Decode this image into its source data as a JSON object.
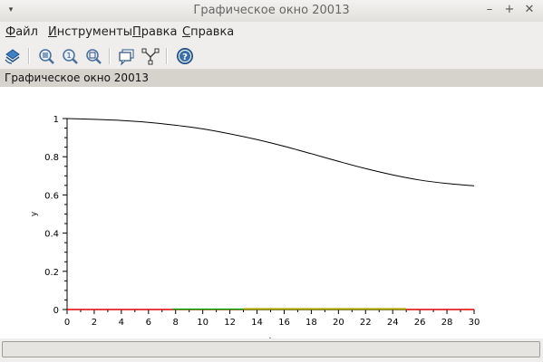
{
  "window": {
    "title": "Графическое окно 20013",
    "menu_icon": "▾",
    "minimize_glyph": "–",
    "maximize_glyph": "+",
    "close_glyph": "✕"
  },
  "menubar": {
    "items": [
      {
        "label": "Файл"
      },
      {
        "label": "Инструменты"
      },
      {
        "label": "Правка"
      },
      {
        "label": "Справка"
      }
    ]
  },
  "toolbar": {
    "buttons": [
      {
        "icon": "rotate-icon"
      },
      {
        "icon": "zoom-grid-icon"
      },
      {
        "icon": "zoom-1-icon"
      },
      {
        "icon": "zoom-area-icon"
      },
      {
        "icon": "datatip-icon"
      },
      {
        "icon": "datatip-editor-icon"
      },
      {
        "icon": "help-icon"
      }
    ]
  },
  "figure_label": "Графическое окно 20013",
  "chart_data": {
    "type": "line",
    "title": "",
    "xlabel": "t",
    "ylabel": "y",
    "xlim": [
      0,
      30
    ],
    "ylim": [
      0,
      1
    ],
    "xticks": [
      "0",
      "2",
      "4",
      "6",
      "8",
      "10",
      "12",
      "14",
      "16",
      "18",
      "20",
      "22",
      "24",
      "26",
      "28",
      "30"
    ],
    "yticks": [
      "0",
      "0.2",
      "0.4",
      "0.6",
      "0.8",
      "1"
    ],
    "series": [
      {
        "color": "#000000",
        "x": [
          0,
          2,
          4,
          6,
          8,
          10,
          12,
          14,
          16,
          18,
          20,
          22,
          24,
          26,
          28,
          30
        ],
        "y": [
          1.0,
          0.996,
          0.99,
          0.98,
          0.965,
          0.946,
          0.92,
          0.89,
          0.855,
          0.816,
          0.776,
          0.738,
          0.705,
          0.678,
          0.66,
          0.648
        ]
      },
      {
        "color": "#dd0000",
        "x": [
          0,
          30
        ],
        "y": [
          0.0,
          0.0
        ]
      },
      {
        "color": "#00aa00",
        "x": [
          7.8,
          25
        ],
        "y": [
          0.002,
          0.002
        ]
      },
      {
        "color": "#bbaa00",
        "x": [
          13,
          25
        ],
        "y": [
          0.004,
          0.004
        ]
      }
    ],
    "grid": false,
    "legend": "none"
  }
}
